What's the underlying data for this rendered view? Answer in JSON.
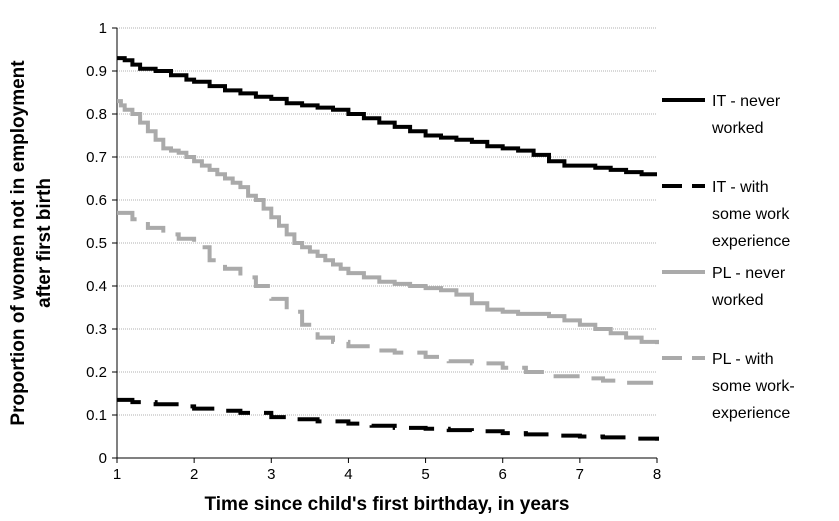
{
  "chart_data": {
    "type": "line",
    "title": "",
    "xlabel": "Time since child's first birthday, in years",
    "ylabel": [
      "Proportion of women not in employment",
      "after first birth"
    ],
    "xlim": [
      1,
      8
    ],
    "ylim": [
      0,
      1
    ],
    "xticks": [
      1,
      2,
      3,
      4,
      5,
      6,
      7,
      8
    ],
    "yticks": [
      0,
      0.1,
      0.2,
      0.3,
      0.4,
      0.5,
      0.6,
      0.7,
      0.8,
      0.9,
      1
    ],
    "ytick_labels": [
      "0",
      "0.1",
      "0.2",
      "0.3",
      "0.4",
      "0.5",
      "0.6",
      "0.7",
      "0.8",
      "0.9",
      "1"
    ],
    "grid": "horizontal",
    "legend_position": "right",
    "series": [
      {
        "name": [
          "IT - never",
          "worked"
        ],
        "color": "#000000",
        "style": "solid",
        "x": [
          1.0,
          1.1,
          1.2,
          1.3,
          1.5,
          1.7,
          1.9,
          2.0,
          2.2,
          2.4,
          2.6,
          2.8,
          3.0,
          3.2,
          3.4,
          3.6,
          3.8,
          4.0,
          4.2,
          4.4,
          4.6,
          4.8,
          5.0,
          5.2,
          5.4,
          5.6,
          5.8,
          6.0,
          6.2,
          6.4,
          6.6,
          6.8,
          7.0,
          7.2,
          7.4,
          7.6,
          7.8,
          8.0
        ],
        "y": [
          0.93,
          0.925,
          0.915,
          0.905,
          0.9,
          0.89,
          0.88,
          0.875,
          0.865,
          0.855,
          0.848,
          0.84,
          0.835,
          0.825,
          0.82,
          0.815,
          0.81,
          0.8,
          0.79,
          0.78,
          0.77,
          0.76,
          0.75,
          0.745,
          0.74,
          0.735,
          0.725,
          0.72,
          0.715,
          0.705,
          0.69,
          0.68,
          0.68,
          0.675,
          0.67,
          0.665,
          0.66,
          0.66
        ]
      },
      {
        "name": [
          "IT - with",
          "some work",
          "experience"
        ],
        "color": "#000000",
        "style": "long-dash",
        "x": [
          1.0,
          1.2,
          1.5,
          1.8,
          2.0,
          2.3,
          2.6,
          3.0,
          3.3,
          3.6,
          4.0,
          4.3,
          4.6,
          5.0,
          5.3,
          5.6,
          6.0,
          6.3,
          6.6,
          7.0,
          7.3,
          7.6,
          8.0
        ],
        "y": [
          0.135,
          0.13,
          0.125,
          0.12,
          0.115,
          0.11,
          0.105,
          0.095,
          0.09,
          0.085,
          0.08,
          0.075,
          0.07,
          0.068,
          0.065,
          0.062,
          0.058,
          0.055,
          0.052,
          0.05,
          0.048,
          0.045,
          0.04
        ]
      },
      {
        "name": [
          "PL - never",
          "worked"
        ],
        "color": "#aaaaaa",
        "style": "solid",
        "x": [
          1.0,
          1.05,
          1.1,
          1.2,
          1.3,
          1.4,
          1.5,
          1.6,
          1.7,
          1.8,
          1.9,
          2.0,
          2.1,
          2.2,
          2.3,
          2.4,
          2.5,
          2.6,
          2.7,
          2.8,
          2.9,
          3.0,
          3.1,
          3.2,
          3.3,
          3.4,
          3.5,
          3.6,
          3.7,
          3.8,
          3.9,
          4.0,
          4.2,
          4.4,
          4.6,
          4.8,
          5.0,
          5.2,
          5.4,
          5.6,
          5.8,
          6.0,
          6.2,
          6.4,
          6.6,
          6.8,
          7.0,
          7.2,
          7.4,
          7.6,
          7.8,
          8.0
        ],
        "y": [
          0.83,
          0.82,
          0.81,
          0.8,
          0.78,
          0.76,
          0.74,
          0.72,
          0.715,
          0.71,
          0.7,
          0.69,
          0.68,
          0.67,
          0.66,
          0.65,
          0.64,
          0.63,
          0.61,
          0.6,
          0.58,
          0.56,
          0.54,
          0.52,
          0.5,
          0.49,
          0.48,
          0.47,
          0.46,
          0.45,
          0.44,
          0.43,
          0.42,
          0.41,
          0.405,
          0.4,
          0.395,
          0.39,
          0.38,
          0.36,
          0.345,
          0.34,
          0.335,
          0.335,
          0.33,
          0.32,
          0.31,
          0.3,
          0.29,
          0.28,
          0.27,
          0.265
        ]
      },
      {
        "name": [
          "PL - with",
          "some work-",
          "experience"
        ],
        "color": "#aaaaaa",
        "style": "long-dash",
        "x": [
          1.0,
          1.2,
          1.4,
          1.6,
          1.8,
          2.0,
          2.2,
          2.4,
          2.6,
          2.8,
          3.0,
          3.2,
          3.4,
          3.6,
          3.8,
          4.0,
          4.3,
          4.6,
          5.0,
          5.3,
          5.6,
          6.0,
          6.3,
          6.6,
          7.0,
          7.3,
          7.6,
          8.0
        ],
        "y": [
          0.57,
          0.555,
          0.535,
          0.52,
          0.51,
          0.49,
          0.46,
          0.44,
          0.42,
          0.4,
          0.37,
          0.34,
          0.31,
          0.28,
          0.27,
          0.26,
          0.25,
          0.245,
          0.235,
          0.225,
          0.22,
          0.21,
          0.2,
          0.19,
          0.185,
          0.18,
          0.175,
          0.17
        ]
      }
    ]
  }
}
